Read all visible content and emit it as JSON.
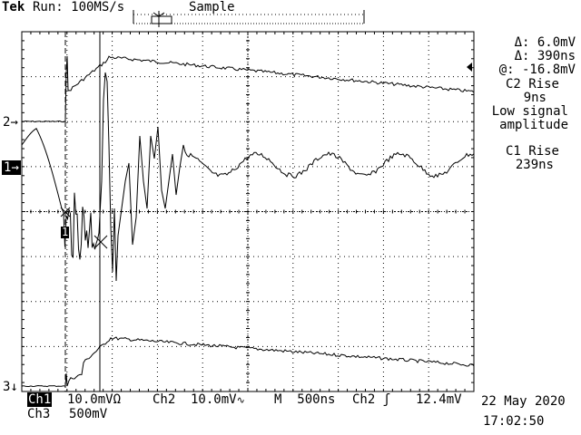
{
  "header": {
    "brand": "Tek",
    "run_status": "Run: 100MS/s",
    "acq_mode": "Sample"
  },
  "measurements": {
    "delta_voltage": "Δ: 6.0mV",
    "delta_time": "Δ: 390ns",
    "at_voltage": "@: -16.8mV",
    "c2_rise_label": "C2 Rise",
    "c2_rise_value": "9ns",
    "warning_line1": "Low signal",
    "warning_line2": "amplitude",
    "c1_rise_label": "C1 Rise",
    "c1_rise_value": "239ns"
  },
  "markers": {
    "ch2": "2",
    "ch1": "1",
    "ch3": "3",
    "trigger_cursor": "1"
  },
  "footer": {
    "ch1_label": "Ch1",
    "ch1_scale": "10.0mVΩ",
    "ch2_label": "Ch2",
    "ch2_scale": "10.0mV",
    "timebase": "M  500ns",
    "trigger_src": "Ch2",
    "trigger_level": "12.4mV",
    "ch3_label": "Ch3",
    "ch3_scale": "500mV",
    "date": "22 May 2020",
    "time": "17:02:50"
  },
  "colors": {
    "background": "#ffffff",
    "trace": "#000000",
    "grid": "#000000"
  }
}
